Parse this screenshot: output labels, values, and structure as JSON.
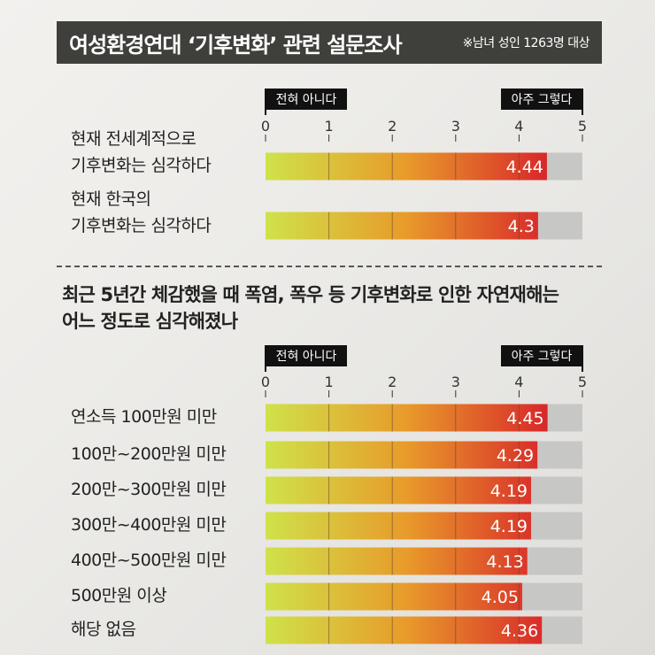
{
  "header": {
    "title": "여성환경연대 ‘기후변화’ 관련 설문조사",
    "subtitle": "※남녀 성인 1263명 대상"
  },
  "colors": {
    "bar_start": "#cfe24a",
    "bar_mid": "#e89a2a",
    "bar_end": "#d8262a",
    "bar_rest": "#c7c7c5",
    "label_bg": "#111111"
  },
  "chart_data": [
    {
      "type": "bar",
      "orientation": "horizontal",
      "scale_left_label": "전혀 아니다",
      "scale_right_label": "아주 그렇다",
      "ticks": [
        "0",
        "1",
        "2",
        "3",
        "4",
        "5"
      ],
      "xlim": [
        0,
        5
      ],
      "categories": [
        [
          "현재 전세계적으로",
          "기후변화는 심각하다"
        ],
        [
          "현재 한국의",
          "기후변화는 심각하다"
        ]
      ],
      "values": [
        4.44,
        4.3
      ],
      "value_labels": [
        "4.44",
        "4.3"
      ]
    },
    {
      "type": "bar",
      "orientation": "horizontal",
      "question": [
        "최근 5년간 체감했을 때 폭염, 폭우 등 기후변화로 인한 자연재해는",
        "어느 정도로 심각해졌나"
      ],
      "scale_left_label": "전혀 아니다",
      "scale_right_label": "아주 그렇다",
      "ticks": [
        "0",
        "1",
        "2",
        "3",
        "4",
        "5"
      ],
      "xlim": [
        0,
        5
      ],
      "categories": [
        [
          "연소득 100만원 미만"
        ],
        [
          "100만~200만원 미만"
        ],
        [
          "200만~300만원 미만"
        ],
        [
          "300만~400만원 미만"
        ],
        [
          "400만~500만원 미만"
        ],
        [
          "500만원 이상"
        ],
        [
          "해당 없음"
        ]
      ],
      "values": [
        4.45,
        4.29,
        4.19,
        4.19,
        4.13,
        4.05,
        4.36
      ],
      "value_labels": [
        "4.45",
        "4.29",
        "4.19",
        "4.19",
        "4.13",
        "4.05",
        "4.36"
      ]
    }
  ]
}
